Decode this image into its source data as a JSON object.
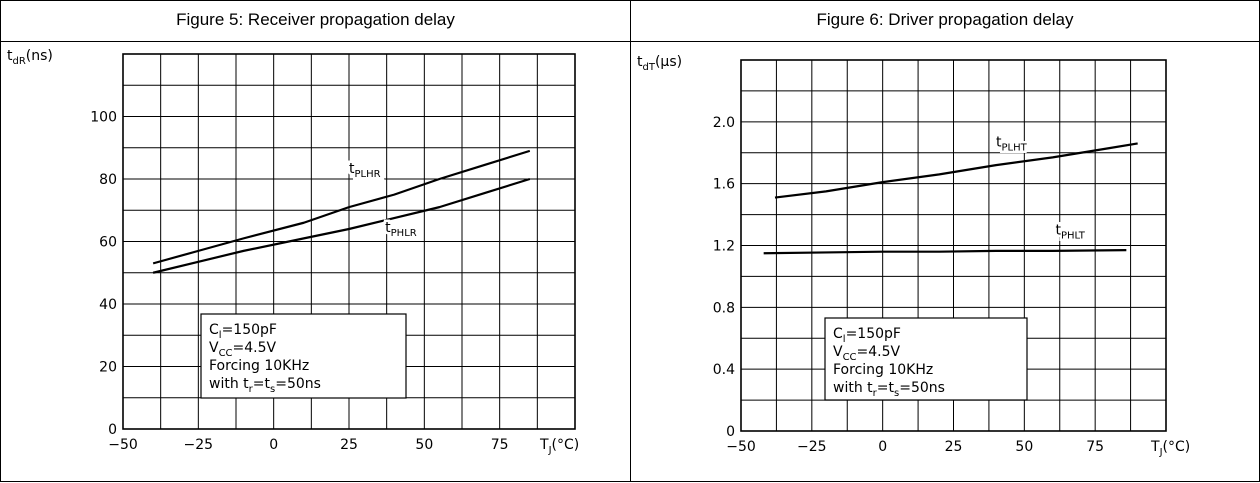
{
  "chart_data": [
    {
      "type": "line",
      "title": "Figure 5: Receiver propagation delay",
      "ylabel_main": "t",
      "ylabel_sub": "dR",
      "ylabel_unit": "(ns)",
      "xlabel_main": "T",
      "xlabel_sub": "J",
      "xlabel_unit": "(°C)",
      "xlim": [
        -50,
        100
      ],
      "ylim": [
        0,
        120
      ],
      "xticks": [
        -50,
        -25,
        0,
        25,
        50,
        75
      ],
      "xtick_labels": [
        "−50",
        "−25",
        "0",
        "25",
        "50",
        "75"
      ],
      "yticks": [
        0,
        20,
        40,
        60,
        80,
        100
      ],
      "ytick_labels": [
        "0",
        "20",
        "40",
        "60",
        "80",
        "100"
      ],
      "grid": true,
      "series": [
        {
          "name_main": "t",
          "name_sub": "PLHR",
          "x": [
            -40,
            -25,
            -10,
            10,
            25,
            40,
            55,
            70,
            85
          ],
          "y": [
            53,
            57,
            61,
            66,
            71,
            75,
            80,
            84.5,
            89
          ]
        },
        {
          "name_main": "t",
          "name_sub": "PHLR",
          "x": [
            -40,
            -25,
            -10,
            10,
            25,
            40,
            55,
            70,
            85
          ],
          "y": [
            50,
            53.5,
            57,
            61,
            64,
            67.5,
            71,
            75.5,
            80
          ]
        }
      ],
      "annotation_lines": [
        {
          "main": "C",
          "sub": "l",
          "rest": "=150pF"
        },
        {
          "main": "V",
          "sub": "CC",
          "rest": "=4.5V"
        },
        {
          "main": "Forcing 10KHz",
          "sub": "",
          "rest": ""
        },
        {
          "main": "with t",
          "sub": "r",
          "rest": "=t",
          "sub2": "s",
          "rest2": "=50ns"
        }
      ]
    },
    {
      "type": "line",
      "title": "Figure 6: Driver propagation delay",
      "ylabel_main": "t",
      "ylabel_sub": "dT",
      "ylabel_unit": "(µs)",
      "xlabel_main": "T",
      "xlabel_sub": "J",
      "xlabel_unit": "(°C)",
      "xlim": [
        -50,
        100
      ],
      "ylim": [
        0,
        2.4
      ],
      "xticks": [
        -50,
        -25,
        0,
        25,
        50,
        75
      ],
      "xtick_labels": [
        "−50",
        "−25",
        "0",
        "25",
        "50",
        "75"
      ],
      "yticks": [
        0,
        0.4,
        0.8,
        1.2,
        1.6,
        2.0
      ],
      "ytick_labels": [
        "0",
        "0.4",
        "0.8",
        "1.2",
        "1.6",
        "2.0"
      ],
      "grid": true,
      "series": [
        {
          "name_main": "t",
          "name_sub": "PLHT",
          "x": [
            -38,
            -20,
            0,
            20,
            40,
            60,
            80,
            90
          ],
          "y": [
            1.51,
            1.55,
            1.61,
            1.66,
            1.72,
            1.77,
            1.83,
            1.86
          ]
        },
        {
          "name_main": "t",
          "name_sub": "PHLT",
          "x": [
            -42,
            -20,
            0,
            20,
            40,
            60,
            86
          ],
          "y": [
            1.15,
            1.155,
            1.16,
            1.16,
            1.165,
            1.165,
            1.17
          ]
        }
      ],
      "annotation_lines": [
        {
          "main": "C",
          "sub": "l",
          "rest": "=150pF"
        },
        {
          "main": "V",
          "sub": "CC",
          "rest": "=4.5V"
        },
        {
          "main": "Forcing 10KHz",
          "sub": "",
          "rest": ""
        },
        {
          "main": "with t",
          "sub": "r",
          "rest": "=t",
          "sub2": "s",
          "rest2": "=50ns"
        }
      ]
    }
  ]
}
